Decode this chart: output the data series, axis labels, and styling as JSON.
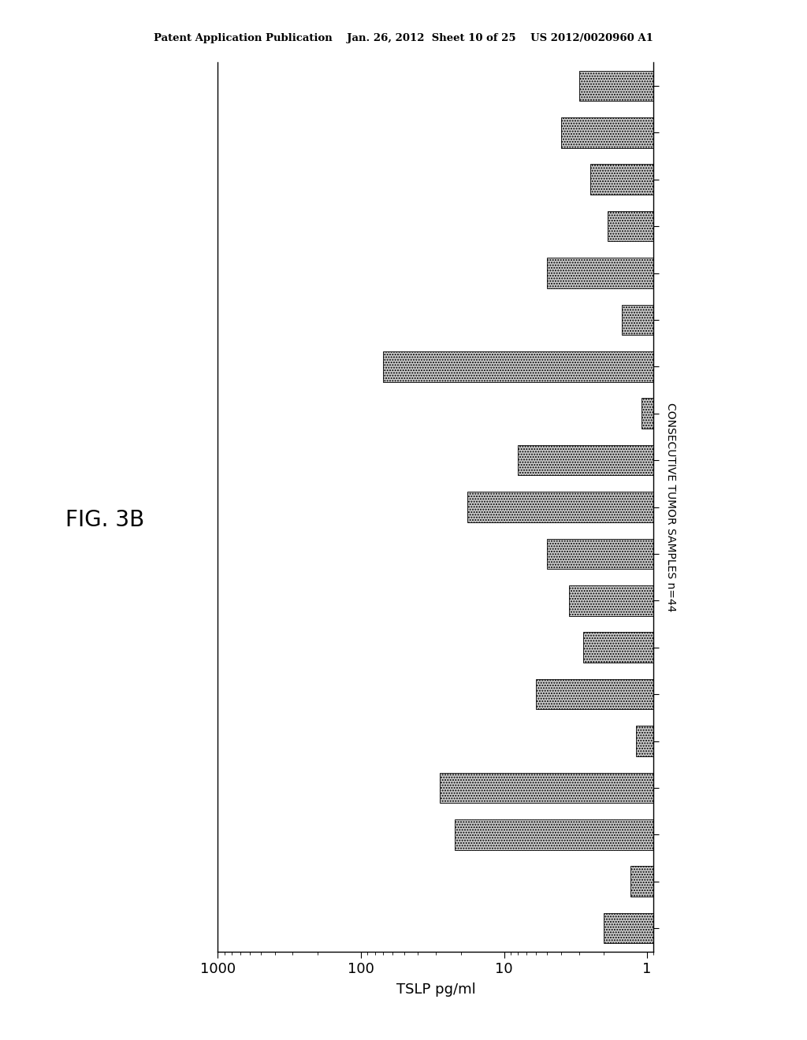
{
  "title": "FIG. 3B",
  "xlabel": "TSLP pg/ml",
  "ylabel": "CONSECUTIVE TUMOR SAMPLES n=44",
  "xticks": [
    1000,
    100,
    10,
    1
  ],
  "xtick_labels": [
    "1000",
    "100",
    "10",
    "1"
  ],
  "bar_values": [
    2.0,
    1.3,
    22,
    28,
    1.2,
    6,
    2.8,
    3.5,
    5,
    18,
    8,
    1.1,
    70,
    1.5,
    5,
    1.9,
    2.5,
    4,
    3
  ],
  "bar_color": "#cccccc",
  "bar_hatch": ".....",
  "bar_height": 0.65,
  "background_color": "#ffffff",
  "figsize": [
    10.24,
    13.2
  ],
  "dpi": 100
}
